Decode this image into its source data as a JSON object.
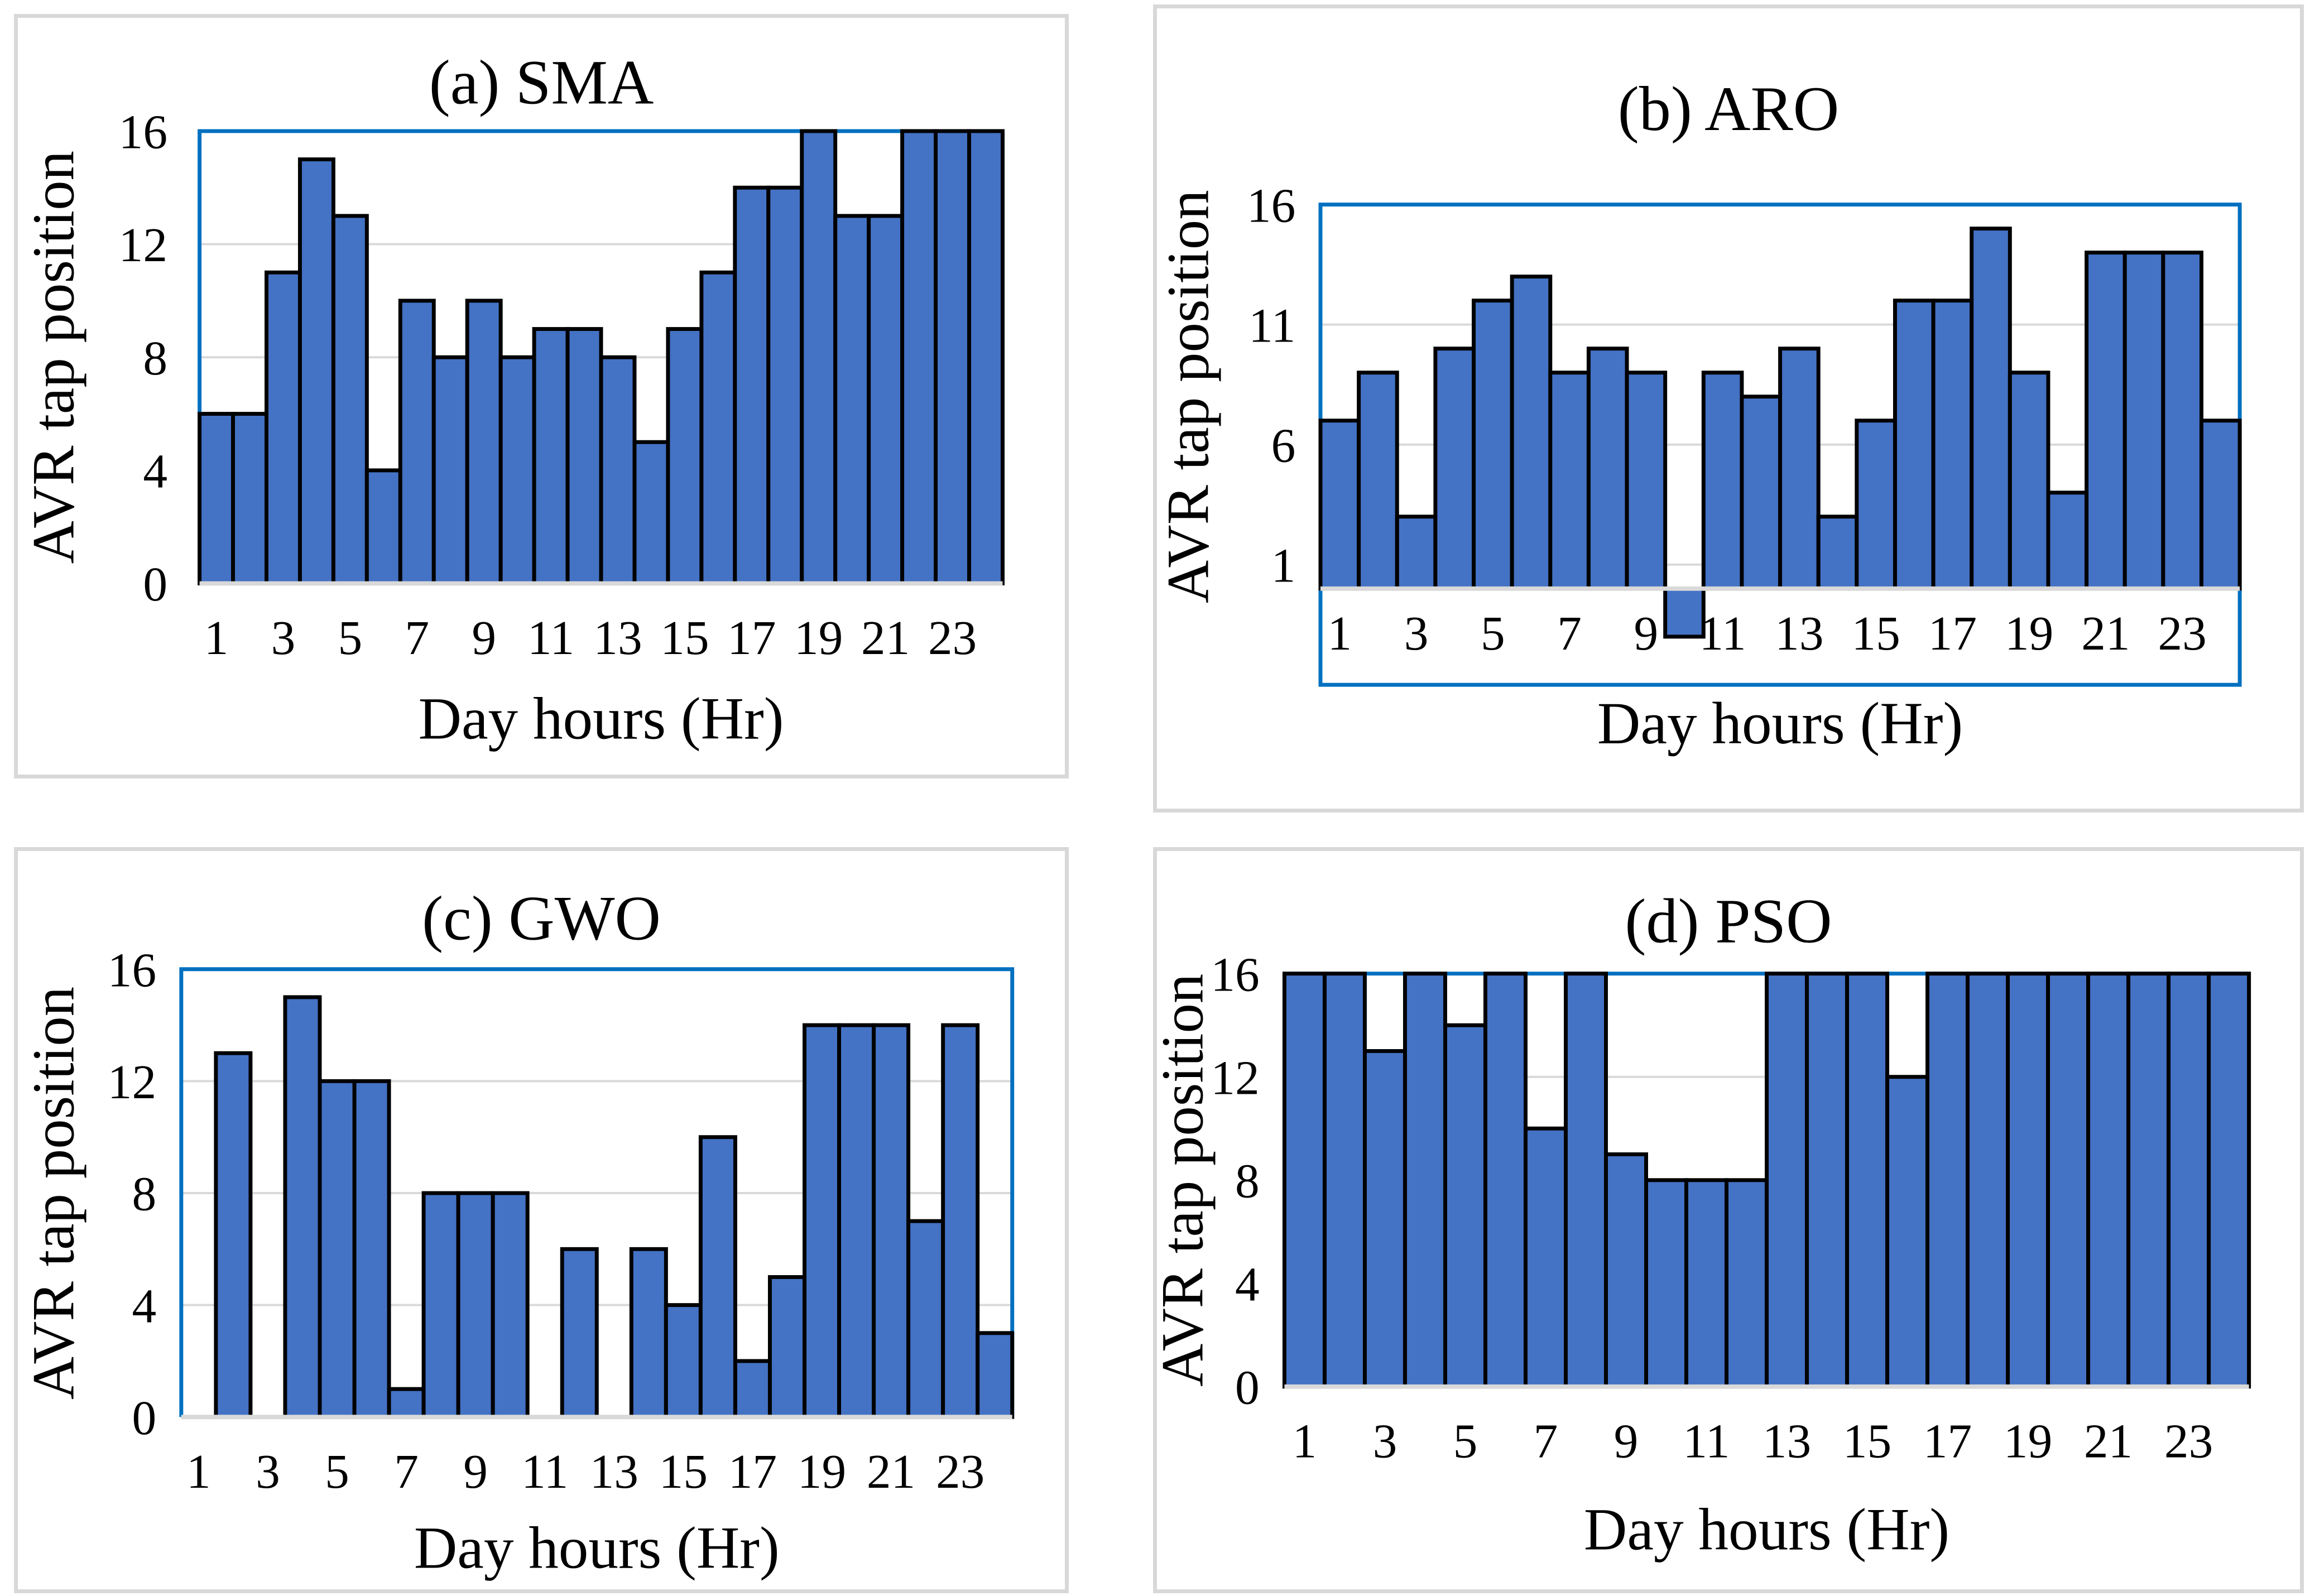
{
  "figure": {
    "description": "Four bar-chart panels comparing hourly AVR tap position schedules produced by four optimization algorithms",
    "panel_count": 4
  },
  "colors": {
    "background": "#FFFFFF",
    "bar_fill": "#4472C4",
    "bar_outline": "#000000",
    "plot_border": "#0070C0",
    "gridline": "#D9D9D9",
    "axis_line": "#D9D9D9",
    "panel_border": "#D8D8D8",
    "text": "#000000"
  },
  "chart_data": [
    {
      "type": "bar",
      "panel": "sma",
      "title": "(a) SMA",
      "xlabel": "Day hours (Hr)",
      "ylabel": "AVR tap position",
      "categories": [
        1,
        2,
        3,
        4,
        5,
        6,
        7,
        8,
        9,
        10,
        11,
        12,
        13,
        14,
        15,
        16,
        17,
        18,
        19,
        20,
        21,
        22,
        23,
        24
      ],
      "values": [
        6,
        6,
        11,
        15,
        13,
        4,
        10,
        8,
        10,
        8,
        9,
        9,
        8,
        5,
        9,
        11,
        14,
        14,
        16,
        13,
        13,
        16,
        16,
        16
      ],
      "xticks": [
        1,
        3,
        5,
        7,
        9,
        11,
        13,
        15,
        17,
        19,
        21,
        23
      ],
      "yticks": [
        0,
        4,
        8,
        12,
        16
      ],
      "gridlines": [
        4,
        8,
        12
      ],
      "ylim": [
        0,
        16
      ],
      "grid": "horizontal",
      "legend": "none"
    },
    {
      "type": "bar",
      "panel": "aro",
      "title": "(b) ARO",
      "xlabel": "Day hours (Hr)",
      "ylabel": "AVR tap position",
      "categories": [
        1,
        2,
        3,
        4,
        5,
        6,
        7,
        8,
        9,
        10,
        11,
        12,
        13,
        14,
        15,
        16,
        17,
        18,
        19,
        20,
        21,
        22,
        23,
        24
      ],
      "values": [
        7,
        9,
        3,
        10,
        12,
        13,
        9,
        10,
        9,
        -2,
        9,
        8,
        10,
        3,
        7,
        12,
        12,
        15,
        9,
        4,
        14,
        14,
        14,
        7
      ],
      "xticks": [
        1,
        3,
        5,
        7,
        9,
        11,
        13,
        15,
        17,
        19,
        21,
        23
      ],
      "yticks": [
        1,
        6,
        11,
        16
      ],
      "gridlines": [
        1,
        6,
        11
      ],
      "ylim": [
        -4,
        16
      ],
      "grid": "horizontal",
      "legend": "none"
    },
    {
      "type": "bar",
      "panel": "gwo",
      "title": "(c) GWO",
      "xlabel": "Day hours (Hr)",
      "ylabel": "AVR tap position",
      "categories": [
        1,
        2,
        3,
        4,
        5,
        6,
        7,
        8,
        9,
        10,
        11,
        12,
        13,
        14,
        15,
        16,
        17,
        18,
        19,
        20,
        21,
        22,
        23,
        24
      ],
      "values": [
        0,
        13,
        0,
        15,
        12,
        12,
        1,
        8,
        8,
        8,
        0,
        6,
        0,
        6,
        4,
        10,
        2,
        5,
        14,
        14,
        14,
        7,
        14,
        3
      ],
      "xticks": [
        1,
        3,
        5,
        7,
        9,
        11,
        13,
        15,
        17,
        19,
        21,
        23
      ],
      "yticks": [
        0,
        4,
        8,
        12,
        16
      ],
      "gridlines": [
        4,
        8,
        12
      ],
      "ylim": [
        0,
        16
      ],
      "grid": "horizontal",
      "legend": "none"
    },
    {
      "type": "bar",
      "panel": "pso",
      "title": "(d) PSO",
      "xlabel": "Day hours (Hr)",
      "ylabel": "AVR tap position",
      "categories": [
        1,
        2,
        3,
        4,
        5,
        6,
        7,
        8,
        9,
        10,
        11,
        12,
        13,
        14,
        15,
        16,
        17,
        18,
        19,
        20,
        21,
        22,
        23,
        24
      ],
      "values": [
        16,
        16,
        13,
        16,
        14,
        16,
        10,
        16,
        9,
        8,
        8,
        8,
        16,
        16,
        16,
        12,
        16,
        16,
        16,
        16,
        16,
        16,
        16,
        16
      ],
      "xticks": [
        1,
        3,
        5,
        7,
        9,
        11,
        13,
        15,
        17,
        19,
        21,
        23
      ],
      "yticks": [
        0,
        4,
        8,
        12,
        16
      ],
      "gridlines": [
        4,
        8,
        12
      ],
      "ylim": [
        0,
        16
      ],
      "grid": "horizontal",
      "legend": "none"
    }
  ]
}
